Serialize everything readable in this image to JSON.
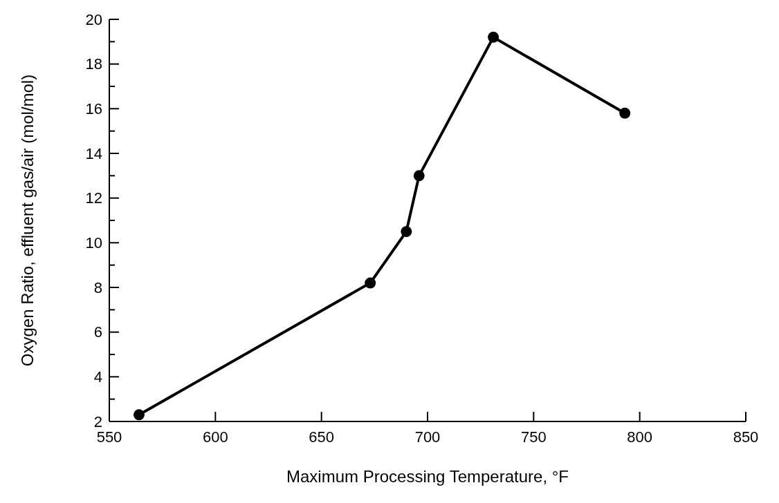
{
  "chart_data": {
    "type": "line",
    "xlabel": "Maximum Processing Temperature, °F",
    "ylabel": "Oxygen Ratio, effluent gas/air (mol/mol)",
    "x": [
      564,
      673,
      690,
      696,
      731,
      793
    ],
    "series": [
      {
        "color": "#000000",
        "values": [
          2.3,
          8.2,
          10.5,
          13,
          19.2,
          15.8
        ]
      }
    ],
    "xlim": [
      550,
      850
    ],
    "xticks": [
      550,
      600,
      650,
      700,
      750,
      800,
      850
    ],
    "ylim": [
      2,
      20
    ],
    "yticks": [
      2,
      {
        "value": 3,
        "label": null
      },
      4,
      {
        "value": 5,
        "label": null
      },
      6,
      {
        "value": 7,
        "label": null
      },
      8,
      {
        "value": 9,
        "label": null
      },
      10,
      {
        "value": 11,
        "label": null
      },
      12,
      {
        "value": 13,
        "label": null
      },
      14,
      {
        "value": 15,
        "label": null
      },
      16,
      {
        "value": 17,
        "label": null
      },
      18,
      {
        "value": 19,
        "label": null
      },
      20
    ],
    "marker": "circle",
    "line_style": "solid",
    "grid": false
  }
}
